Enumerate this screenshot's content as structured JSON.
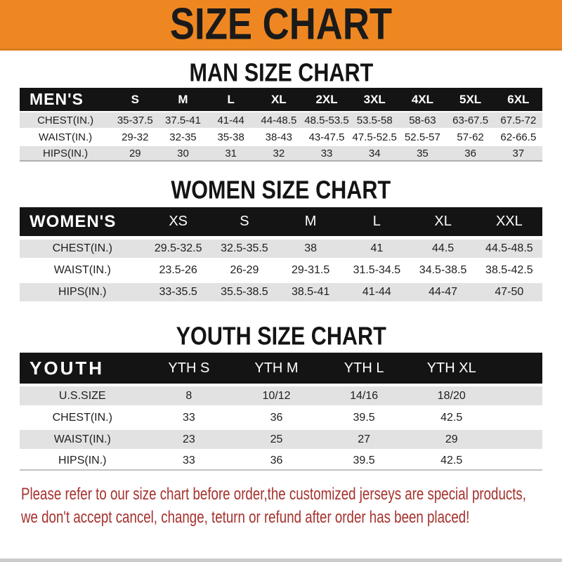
{
  "banner": {
    "title": "SIZE CHART"
  },
  "colors": {
    "banner_bg": "#ee8722",
    "header_bar_bg": "#141414",
    "row_shade": "#e2e2e2",
    "notice_text": "#a5322e"
  },
  "sections": [
    {
      "heading": "MAN SIZE CHART",
      "table": {
        "label": "MEN'S",
        "columns": [
          "S",
          "M",
          "L",
          "XL",
          "2XL",
          "3XL",
          "4XL",
          "5XL",
          "6XL"
        ],
        "rows": [
          {
            "label": "CHEST(IN.)",
            "values": [
              "35-37.5",
              "37.5-41",
              "41-44",
              "44-48.5",
              "48.5-53.5",
              "53.5-58",
              "58-63",
              "63-67.5",
              "67.5-72"
            ]
          },
          {
            "label": "WAIST(IN.)",
            "values": [
              "29-32",
              "32-35",
              "35-38",
              "38-43",
              "43-47.5",
              "47.5-52.5",
              "52.5-57",
              "57-62",
              "62-66.5"
            ]
          },
          {
            "label": "HIPS(IN.)",
            "values": [
              "29",
              "30",
              "31",
              "32",
              "33",
              "34",
              "35",
              "36",
              "37"
            ]
          }
        ]
      }
    },
    {
      "heading": "WOMEN SIZE CHART",
      "table": {
        "label": "WOMEN'S",
        "columns": [
          "XS",
          "S",
          "M",
          "L",
          "XL",
          "XXL"
        ],
        "rows": [
          {
            "label": "CHEST(IN.)",
            "values": [
              "29.5-32.5",
              "32.5-35.5",
              "38",
              "41",
              "44.5",
              "44.5-48.5"
            ]
          },
          {
            "label": "WAIST(IN.)",
            "values": [
              "23.5-26",
              "26-29",
              "29-31.5",
              "31.5-34.5",
              "34.5-38.5",
              "38.5-42.5"
            ]
          },
          {
            "label": "HIPS(IN.)",
            "values": [
              "33-35.5",
              "35.5-38.5",
              "38.5-41",
              "41-44",
              "44-47",
              "47-50"
            ]
          }
        ]
      }
    },
    {
      "heading": "YOUTH SIZE CHART",
      "table": {
        "label": "YOUTH",
        "columns": [
          "YTH S",
          "YTH M",
          "YTH L",
          "YTH XL"
        ],
        "rows": [
          {
            "label": "U.S.SIZE",
            "values": [
              "8",
              "10/12",
              "14/16",
              "18/20"
            ]
          },
          {
            "label": "CHEST(IN.)",
            "values": [
              "33",
              "36",
              "39.5",
              "42.5"
            ]
          },
          {
            "label": "WAIST(IN.)",
            "values": [
              "23",
              "25",
              "27",
              "29"
            ]
          },
          {
            "label": "HIPS(IN.)",
            "values": [
              "33",
              "36",
              "39.5",
              "42.5"
            ]
          }
        ]
      }
    }
  ],
  "footer": {
    "line1": "Please refer to our size chart before order,the customized jerseys are special products,",
    "line2": "we don't accept cancel, change, teturn or refund after order has been placed!"
  }
}
